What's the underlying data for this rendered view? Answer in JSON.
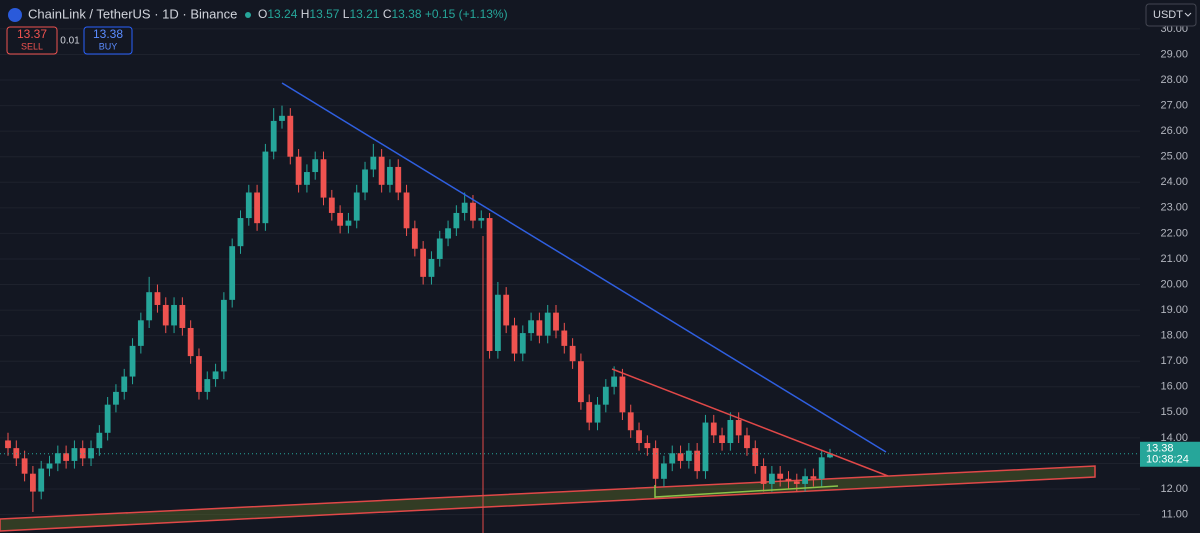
{
  "header": {
    "symbol": "ChainLink / TetherUS · 1D · Binance",
    "ohlc": [
      {
        "label": "O",
        "value": "13.24"
      },
      {
        "label": "H",
        "value": "13.57"
      },
      {
        "label": "L",
        "value": "13.21"
      },
      {
        "label": "C",
        "value": "13.38"
      }
    ],
    "change": "+0.15 (+1.13%)"
  },
  "trade": {
    "sell_price": "13.37",
    "sell": "SELL",
    "spread": "0.01",
    "buy_price": "13.38",
    "buy": "BUY"
  },
  "currency": "USDT",
  "price_tag": {
    "price": "13.38",
    "countdown": "10:38:24"
  },
  "chart_data": {
    "type": "candlestick",
    "up_color": "#26a69a",
    "down_color": "#ef5350",
    "grid": true,
    "ylim": [
      10.28,
      31.13
    ],
    "yticks": [
      {
        "value": 11,
        "label": "11.00"
      },
      {
        "value": 12,
        "label": "12.00"
      },
      {
        "value": 13,
        "label": "13.00"
      },
      {
        "value": 14,
        "label": "14.00"
      },
      {
        "value": 15,
        "label": "15.00"
      },
      {
        "value": 16,
        "label": "16.00"
      },
      {
        "value": 17,
        "label": "17.00"
      },
      {
        "value": 18,
        "label": "18.00"
      },
      {
        "value": 19,
        "label": "19.00"
      },
      {
        "value": 20,
        "label": "20.00"
      },
      {
        "value": 21,
        "label": "21.00"
      },
      {
        "value": 22,
        "label": "22.00"
      },
      {
        "value": 23,
        "label": "23.00"
      },
      {
        "value": 24,
        "label": "24.00"
      },
      {
        "value": 25,
        "label": "25.00"
      },
      {
        "value": 26,
        "label": "26.00"
      },
      {
        "value": 27,
        "label": "27.00"
      },
      {
        "value": 28,
        "label": "28.00"
      },
      {
        "value": 29,
        "label": "29.00"
      },
      {
        "value": 30,
        "label": "30.00"
      }
    ],
    "open": [
      13.9,
      13.6,
      13.2,
      12.6,
      11.9,
      12.8,
      13.0,
      13.4,
      13.1,
      13.6,
      13.2,
      13.6,
      14.2,
      15.3,
      15.8,
      16.4,
      17.6,
      18.6,
      19.7,
      19.2,
      18.4,
      19.2,
      18.3,
      17.2,
      15.8,
      16.3,
      16.6,
      19.4,
      21.5,
      22.6,
      23.6,
      22.4,
      25.2,
      26.4,
      26.6,
      25.0,
      23.9,
      24.4,
      24.9,
      23.4,
      22.8,
      22.3,
      22.5,
      23.6,
      24.5,
      25.0,
      23.9,
      24.6,
      23.6,
      22.2,
      21.4,
      20.3,
      21.0,
      21.8,
      22.2,
      22.8,
      23.2,
      22.5,
      22.6,
      17.4,
      19.6,
      18.4,
      17.3,
      18.1,
      18.6,
      18.0,
      18.9,
      18.2,
      17.6,
      17.0,
      15.4,
      14.6,
      15.3,
      16.0,
      16.4,
      15.0,
      14.3,
      13.8,
      13.6,
      12.4,
      13.0,
      13.4,
      13.1,
      13.5,
      12.7,
      14.6,
      14.1,
      13.8,
      14.7,
      14.1,
      13.6,
      12.9,
      12.2,
      12.6,
      12.4,
      12.3,
      12.2,
      12.5,
      12.4,
      13.24
    ],
    "high": [
      14.2,
      13.9,
      13.5,
      12.9,
      13.1,
      13.3,
      13.7,
      13.7,
      13.9,
      13.9,
      13.9,
      14.5,
      15.6,
      16.1,
      16.7,
      17.9,
      18.9,
      20.3,
      20.0,
      19.5,
      19.5,
      19.5,
      18.6,
      17.5,
      16.6,
      16.9,
      19.7,
      21.8,
      22.9,
      23.9,
      23.9,
      25.5,
      26.9,
      27.0,
      26.9,
      25.3,
      24.7,
      25.2,
      25.2,
      23.7,
      23.1,
      22.8,
      23.9,
      24.8,
      25.5,
      25.3,
      24.9,
      24.9,
      23.9,
      22.5,
      21.7,
      21.3,
      22.1,
      22.5,
      23.1,
      23.6,
      23.5,
      22.9,
      22.8,
      20.1,
      19.9,
      18.7,
      18.4,
      18.9,
      18.9,
      19.2,
      19.2,
      18.5,
      17.9,
      17.3,
      15.7,
      15.6,
      16.3,
      16.8,
      16.7,
      15.3,
      14.6,
      14.1,
      13.9,
      13.3,
      13.7,
      13.7,
      13.8,
      13.8,
      14.9,
      14.9,
      14.4,
      15.0,
      15.0,
      14.4,
      13.9,
      13.2,
      12.9,
      12.9,
      12.7,
      12.6,
      12.8,
      12.8,
      13.5,
      13.57
    ],
    "low": [
      13.3,
      12.9,
      12.3,
      11.1,
      11.6,
      12.5,
      12.7,
      12.8,
      12.8,
      12.9,
      12.9,
      13.3,
      13.9,
      15.0,
      15.5,
      16.1,
      17.3,
      18.3,
      18.9,
      18.1,
      18.1,
      18.0,
      16.9,
      15.5,
      15.5,
      16.0,
      16.3,
      19.1,
      21.2,
      22.3,
      22.1,
      22.1,
      24.9,
      26.1,
      24.7,
      23.6,
      23.6,
      24.1,
      23.1,
      22.5,
      22.0,
      22.0,
      22.2,
      23.3,
      24.2,
      23.6,
      23.6,
      23.3,
      21.9,
      21.1,
      20.0,
      20.0,
      20.7,
      21.5,
      21.9,
      22.5,
      22.2,
      22.2,
      17.1,
      17.1,
      18.1,
      17.0,
      17.0,
      17.8,
      17.7,
      17.7,
      17.9,
      17.3,
      16.7,
      15.1,
      14.3,
      14.3,
      15.0,
      15.7,
      14.7,
      14.0,
      13.5,
      13.3,
      12.1,
      12.1,
      12.7,
      12.8,
      12.8,
      12.4,
      12.4,
      13.8,
      13.5,
      13.5,
      13.8,
      13.3,
      12.6,
      11.9,
      11.9,
      12.1,
      12.0,
      11.9,
      11.9,
      12.1,
      12.1,
      13.21
    ],
    "close": [
      13.6,
      13.2,
      12.6,
      11.9,
      12.8,
      13.0,
      13.4,
      13.1,
      13.6,
      13.2,
      13.6,
      14.2,
      15.3,
      15.8,
      16.4,
      17.6,
      18.6,
      19.7,
      19.2,
      18.4,
      19.2,
      18.3,
      17.2,
      15.8,
      16.3,
      16.6,
      19.4,
      21.5,
      22.6,
      23.6,
      22.4,
      25.2,
      26.4,
      26.6,
      25.0,
      23.9,
      24.4,
      24.9,
      23.4,
      22.8,
      22.3,
      22.5,
      23.6,
      24.5,
      25.0,
      23.9,
      24.6,
      23.6,
      22.2,
      21.4,
      20.3,
      21.0,
      21.8,
      22.2,
      22.8,
      23.2,
      22.5,
      22.6,
      17.4,
      19.6,
      18.4,
      17.3,
      18.1,
      18.6,
      18.0,
      18.9,
      18.2,
      17.6,
      17.0,
      15.4,
      14.6,
      15.3,
      16.0,
      16.4,
      15.0,
      14.3,
      13.8,
      13.6,
      12.4,
      13.0,
      13.4,
      13.1,
      13.5,
      12.7,
      14.6,
      14.1,
      13.8,
      14.7,
      14.1,
      13.6,
      12.9,
      12.2,
      12.6,
      12.4,
      12.3,
      12.2,
      12.5,
      12.4,
      13.24,
      13.38
    ]
  }
}
